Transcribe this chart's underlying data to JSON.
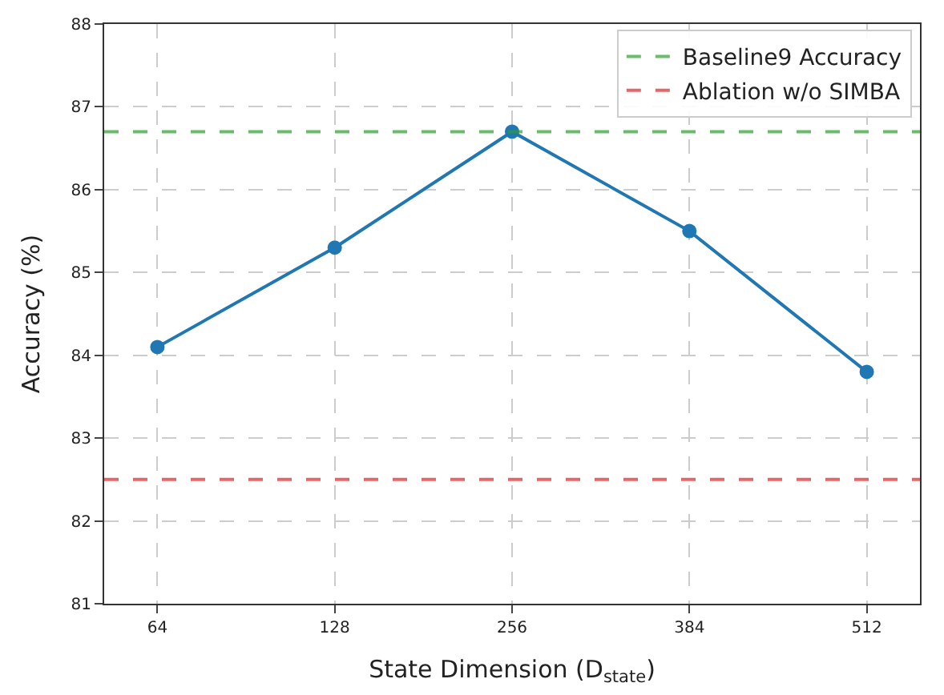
{
  "chart_data": {
    "type": "line",
    "xlabel": "State Dimension (D$_{state}$)",
    "ylabel": "Accuracy (%)",
    "categories": [
      "64",
      "128",
      "256",
      "384",
      "512"
    ],
    "series": [
      {
        "color": "#1f77b4",
        "values": [
          84.1,
          85.3,
          86.7,
          85.5,
          83.8
        ]
      }
    ],
    "ylim": [
      81,
      88
    ],
    "yticks": [
      81,
      82,
      83,
      84,
      85,
      86,
      87,
      88
    ],
    "ref_lines": [
      {
        "axis": "y",
        "value": 86.7,
        "label": "Baseline9 Accuracy",
        "color": "#2ca02c",
        "line_style": "dashed"
      },
      {
        "axis": "y",
        "value": 82.5,
        "label": "Ablation w/o SIMBA",
        "color": "#d62728",
        "line_style": "dashed"
      }
    ],
    "grid": true,
    "legend": "top right",
    "marker": "circle",
    "line_style": "solid"
  }
}
